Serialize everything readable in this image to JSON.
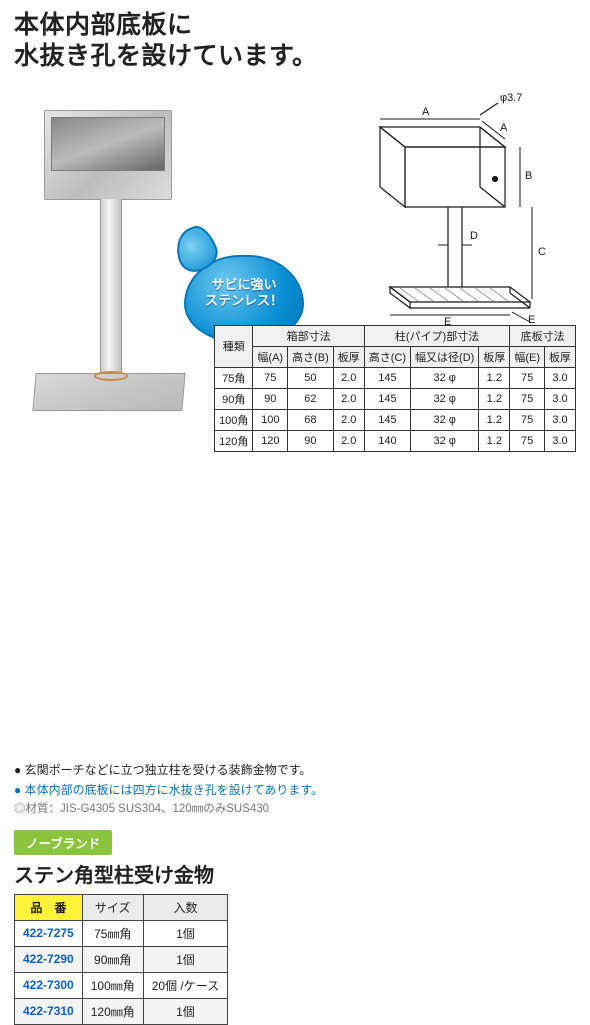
{
  "headline_line1": "本体内部底板に",
  "headline_line2": "水抜き孔を設けています。",
  "badge_line1": "サビに強い",
  "badge_line2": "ステンレス！",
  "diagram": {
    "labels": {
      "phi": "φ3.7",
      "A": "A",
      "B": "B",
      "C": "C",
      "D": "D",
      "E": "E"
    },
    "stroke_color": "#1a1a1a",
    "stroke_width": 1.2,
    "hatch_color": "#666666"
  },
  "spec_table": {
    "header_group_kind": "種類",
    "group_box": "箱部寸法",
    "group_pipe": "柱(パイプ)部寸法",
    "group_base": "底板寸法",
    "sub": {
      "widthA": "幅(A)",
      "heightB": "高さ(B)",
      "thick": "板厚",
      "heightC": "高さ(C)",
      "diaD": "幅又は径(D)",
      "thick2": "板厚",
      "widthE": "幅(E)",
      "thick3": "板厚"
    },
    "rows": [
      {
        "kind": "75角",
        "A": "75",
        "B": "50",
        "t1": "2.0",
        "C": "145",
        "D": "32 φ",
        "t2": "1.2",
        "E": "75",
        "t3": "3.0"
      },
      {
        "kind": "90角",
        "A": "90",
        "B": "62",
        "t1": "2.0",
        "C": "145",
        "D": "32 φ",
        "t2": "1.2",
        "E": "75",
        "t3": "3.0"
      },
      {
        "kind": "100角",
        "A": "100",
        "B": "68",
        "t1": "2.0",
        "C": "145",
        "D": "32 φ",
        "t2": "1.2",
        "E": "75",
        "t3": "3.0"
      },
      {
        "kind": "120角",
        "A": "120",
        "B": "90",
        "t1": "2.0",
        "C": "140",
        "D": "32 φ",
        "t2": "1.2",
        "E": "75",
        "t3": "3.0"
      }
    ]
  },
  "bullets": {
    "b1": "● 玄関ポーチなどに立つ独立柱を受ける装飾金物です。",
    "b2": "● 本体内部の底板には四方に水抜き孔を設けてあります。",
    "b3": "◎材質：JIS-G4305 SUS304、120㎜のみSUS430"
  },
  "brand_tag": "ノーブランド",
  "product_name": "ステン角型柱受け金物",
  "sku_table": {
    "headers": {
      "code": "品　番",
      "size": "サイズ",
      "qty": "入数"
    },
    "rows": [
      {
        "code": "422-7275",
        "size": "75㎜角",
        "qty": "1個"
      },
      {
        "code": "422-7290",
        "size": "90㎜角",
        "qty": "1個"
      },
      {
        "code": "422-7300",
        "size": "100㎜角",
        "qty": "20個 /ケース"
      },
      {
        "code": "422-7310",
        "size": "120㎜角",
        "qty": "1個"
      }
    ]
  },
  "colors": {
    "badge_stroke": "#0577b6",
    "badge_fill_light": "#6fc8f0",
    "badge_fill_dark": "#0a8fd4",
    "brand_green": "#8bc53f",
    "sku_yellow": "#fff23a",
    "link_blue": "#0a60c2",
    "info_blue": "#0a72b5"
  }
}
